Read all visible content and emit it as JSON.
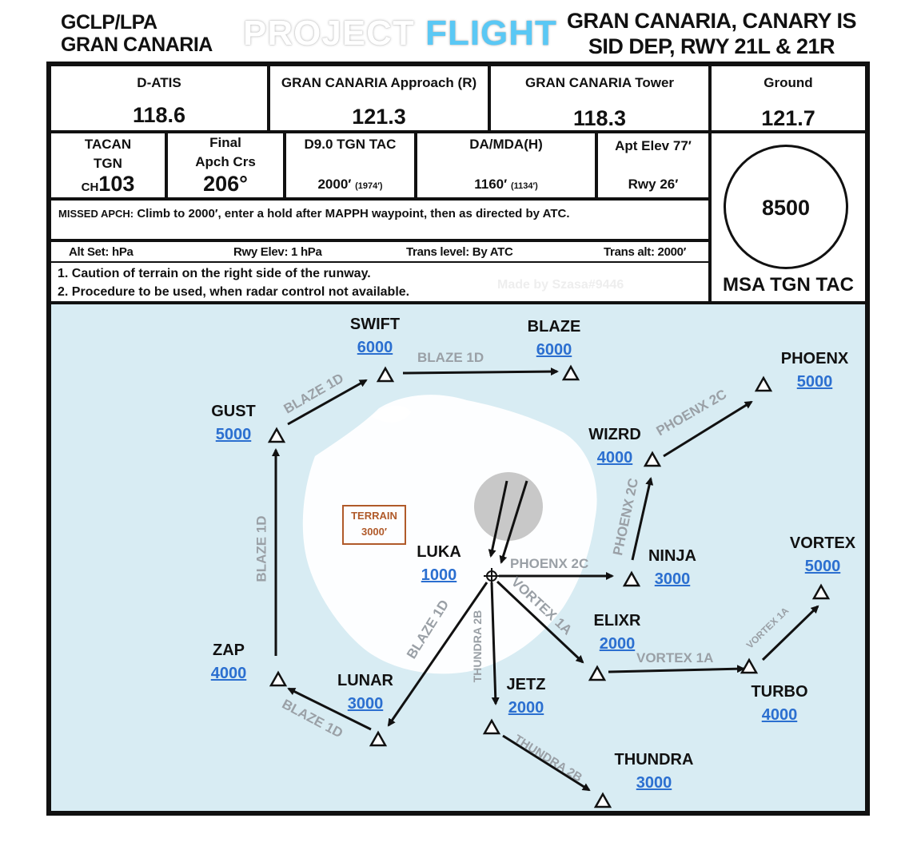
{
  "header": {
    "ident": "GCLP/LPA",
    "airport": "GRAN CANARIA",
    "brand_word1": "PROJECT",
    "brand_word2": "FLIGHT",
    "title_line1": "GRAN CANARIA, CANARY IS",
    "title_line2": "SID DEP, RWY 21L & 21R"
  },
  "frequencies": [
    {
      "label": "D-ATIS",
      "value": "118.6"
    },
    {
      "label": "GRAN CANARIA Approach (R)",
      "value": "121.3"
    },
    {
      "label": "GRAN CANARIA Tower",
      "value": "118.3"
    },
    {
      "label": "Ground",
      "value": "121.7"
    }
  ],
  "info": {
    "tacan_label1": "TACAN",
    "tacan_label2": "TGN",
    "tacan_ch": "CH",
    "tacan_value": "103",
    "final_label1": "Final",
    "final_label2": "Apch Crs",
    "final_value": "206°",
    "d9_label": "D9.0 TGN TAC",
    "d9_value": "2000′",
    "d9_small": "(1974′)",
    "da_label": "DA/MDA(H)",
    "da_value": "1160′",
    "da_small": "(1134′)",
    "elev_label": "Apt Elev 77′",
    "elev_rwy": "Rwy 26′"
  },
  "missed": {
    "label": "MISSED APCH:",
    "text": "Climb to 2000′, enter a hold after MAPPH waypoint, then as directed by ATC."
  },
  "alt_row": {
    "altset": "Alt Set: hPa",
    "rwyelev": "Rwy Elev: 1 hPa",
    "translevel": "Trans level: By ATC",
    "transalt": "Trans alt: 2000′"
  },
  "notes": [
    "1. Caution of terrain on the right side of the runway.",
    "2. Procedure to be used, when radar control not available."
  ],
  "credit": "Made by Szasa#9446",
  "msa": {
    "value": "8500",
    "label": "MSA TGN TAC"
  },
  "terrain": {
    "label": "TERRAIN",
    "value": "3000′"
  },
  "waypoints": [
    {
      "name": "SWIFT",
      "alt": "6000"
    },
    {
      "name": "BLAZE",
      "alt": "6000"
    },
    {
      "name": "PHOENX",
      "alt": "5000"
    },
    {
      "name": "GUST",
      "alt": "5000"
    },
    {
      "name": "WIZRD",
      "alt": "4000"
    },
    {
      "name": "LUKA",
      "alt": "1000"
    },
    {
      "name": "NINJA",
      "alt": "3000"
    },
    {
      "name": "VORTEX",
      "alt": "5000"
    },
    {
      "name": "ELIXR",
      "alt": "2000"
    },
    {
      "name": "ZAP",
      "alt": "4000"
    },
    {
      "name": "LUNAR",
      "alt": "3000"
    },
    {
      "name": "JETZ",
      "alt": "2000"
    },
    {
      "name": "TURBO",
      "alt": "4000"
    },
    {
      "name": "THUNDRA",
      "alt": "3000"
    }
  ],
  "routes": {
    "blaze": "BLAZE 1D",
    "phoenx": "PHOENX 2C",
    "vortex": "VORTEX 1A",
    "thundra": "THUNDRA 2B"
  },
  "colors": {
    "map_bg": "#d8ecf3",
    "altitude": "#2b6fd0",
    "route_label": "#9aa0a6",
    "terrain": "#b05a2a",
    "brand_accent": "#5ac8f5"
  }
}
